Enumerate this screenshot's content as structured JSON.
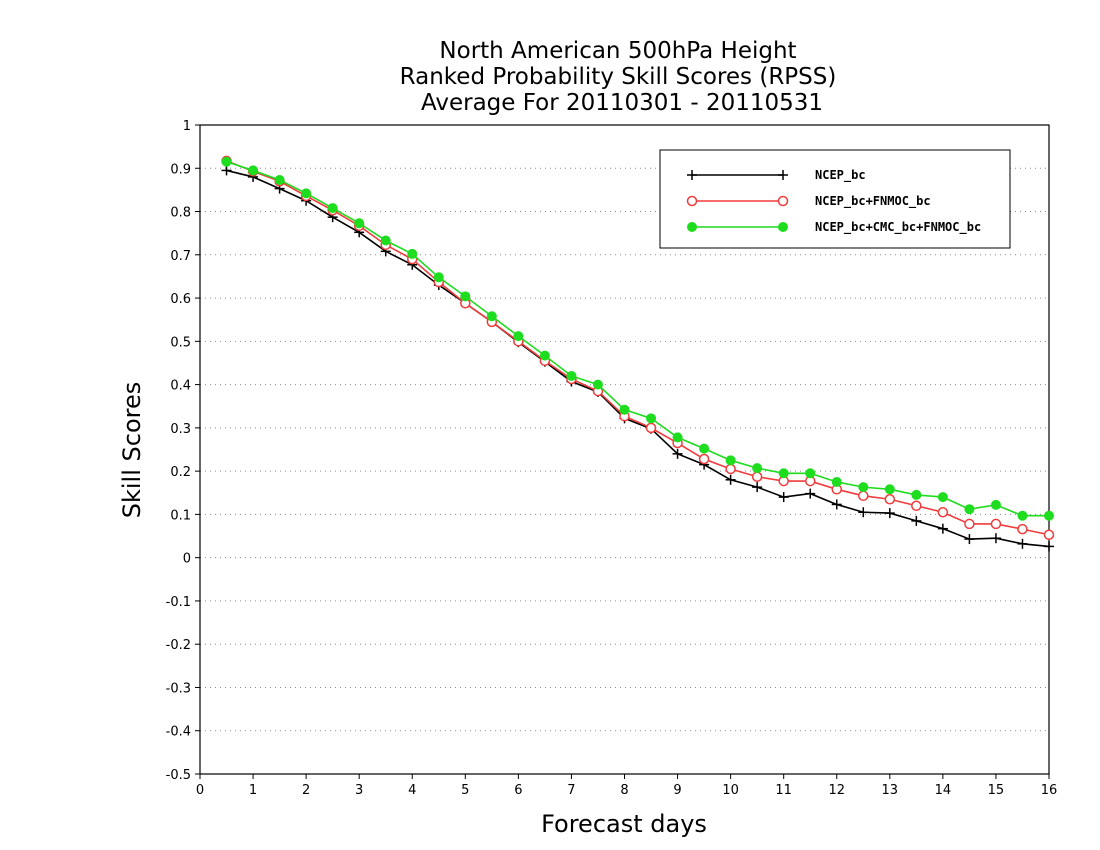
{
  "chart_data": {
    "type": "line",
    "title": [
      "North American 500hPa Height",
      "Ranked Probability Skill Scores (RPSS)",
      "Average For 20110301 - 20110531"
    ],
    "xlabel": "Forecast days",
    "ylabel": "Skill Scores",
    "xlim": [
      0,
      16
    ],
    "ylim": [
      -0.5,
      1
    ],
    "xticks": [
      "0",
      "1",
      "2",
      "3",
      "4",
      "5",
      "6",
      "7",
      "8",
      "9",
      "10",
      "11",
      "12",
      "13",
      "14",
      "15",
      "16"
    ],
    "yticks": [
      "1",
      "0.9",
      "0.8",
      "0.7",
      "0.6",
      "0.5",
      "0.4",
      "0.3",
      "0.2",
      "0.1",
      "0",
      "-0.1",
      "-0.2",
      "-0.3",
      "-0.4",
      "-0.5"
    ],
    "grid": "horizontal dotted",
    "legend_position": "top-right",
    "x": [
      0.5,
      1,
      1.5,
      2,
      2.5,
      3,
      3.5,
      4,
      4.5,
      5,
      5.5,
      6,
      6.5,
      7,
      7.5,
      8,
      8.5,
      9,
      9.5,
      10,
      10.5,
      11,
      11.5,
      12,
      12.5,
      13,
      13.5,
      14,
      14.5,
      15,
      15.5,
      16
    ],
    "series": [
      {
        "name": "NCEP_bc",
        "color": "#000000",
        "marker": "plus",
        "values": [
          0.895,
          0.88,
          0.853,
          0.825,
          0.787,
          0.752,
          0.708,
          0.677,
          0.63,
          0.588,
          0.545,
          0.498,
          0.453,
          0.407,
          0.383,
          0.322,
          0.298,
          0.24,
          0.215,
          0.18,
          0.163,
          0.14,
          0.148,
          0.123,
          0.105,
          0.103,
          0.085,
          0.067,
          0.043,
          0.045,
          0.032,
          0.026
        ]
      },
      {
        "name": "NCEP_bc+FNMOC_bc",
        "color": "#f03c3c",
        "marker": "open-circle",
        "values": [
          0.917,
          0.893,
          0.87,
          0.836,
          0.803,
          0.767,
          0.723,
          0.69,
          0.637,
          0.588,
          0.545,
          0.5,
          0.455,
          0.413,
          0.385,
          0.327,
          0.3,
          0.265,
          0.228,
          0.205,
          0.187,
          0.177,
          0.177,
          0.158,
          0.143,
          0.135,
          0.12,
          0.105,
          0.078,
          0.078,
          0.066,
          0.053
        ]
      },
      {
        "name": "NCEP_bc+CMC_bc+FNMOC_bc",
        "color": "#1edc1e",
        "marker": "filled-circle",
        "values": [
          0.915,
          0.895,
          0.873,
          0.842,
          0.808,
          0.773,
          0.733,
          0.702,
          0.648,
          0.604,
          0.558,
          0.512,
          0.467,
          0.42,
          0.4,
          0.342,
          0.322,
          0.278,
          0.252,
          0.225,
          0.207,
          0.195,
          0.195,
          0.175,
          0.163,
          0.158,
          0.145,
          0.14,
          0.112,
          0.122,
          0.097,
          0.097
        ]
      }
    ]
  }
}
